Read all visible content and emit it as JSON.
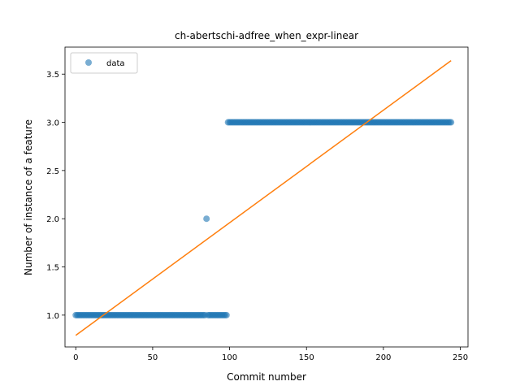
{
  "chart_data": {
    "type": "scatter",
    "title": "ch-abertschi-adfree_when_expr-linear",
    "xlabel": "Commit number",
    "ylabel": "Number of instance of a feature",
    "xlim": [
      -7,
      255
    ],
    "ylim": [
      0.67,
      3.78
    ],
    "xticks": [
      0,
      50,
      100,
      150,
      200,
      250
    ],
    "yticks": [
      1.0,
      1.5,
      2.0,
      2.5,
      3.0,
      3.5
    ],
    "xtick_labels": [
      "0",
      "50",
      "100",
      "150",
      "200",
      "250"
    ],
    "ytick_labels": [
      "1.0",
      "1.5",
      "2.0",
      "2.5",
      "3.0",
      "3.5"
    ],
    "grid": false,
    "legend": {
      "position": "top-left",
      "entries": [
        "data"
      ]
    },
    "series": [
      {
        "name": "data",
        "kind": "scatter",
        "color": "#1f77b4",
        "segments": [
          {
            "x_start": 0,
            "x_end": 84,
            "y": 1.0
          },
          {
            "x_start": 85,
            "x_end": 85,
            "y": 2.0
          },
          {
            "x_start": 86,
            "x_end": 98,
            "y": 1.0
          },
          {
            "x_start": 99,
            "x_end": 244,
            "y": 3.0
          }
        ]
      },
      {
        "kind": "line",
        "color": "#ff7f0e",
        "x": [
          0,
          244
        ],
        "y": [
          0.79,
          3.64
        ]
      }
    ]
  }
}
